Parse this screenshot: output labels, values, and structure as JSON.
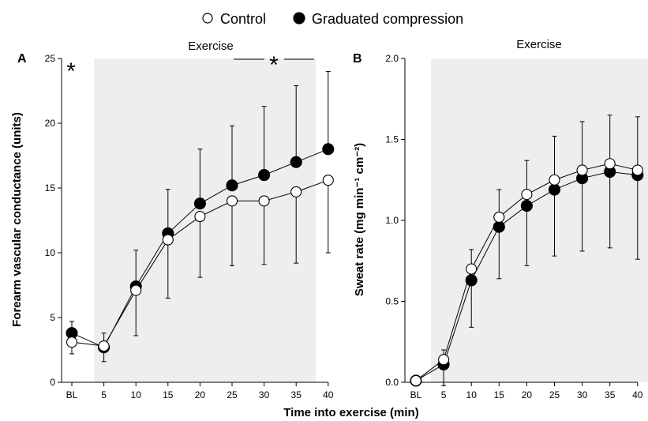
{
  "legend": {
    "items": [
      {
        "label": "Control",
        "marker": "open-circle"
      },
      {
        "label": "Graduated compression",
        "marker": "filled-circle"
      }
    ]
  },
  "shared_xlabel": "Time into exercise (min)",
  "colors": {
    "shade": "#eeeeee",
    "line": "#000000",
    "open_fill": "#ffffff",
    "filled_fill": "#000000"
  },
  "chart_data": [
    {
      "type": "line",
      "panel_label": "A",
      "shaded_region_label": "Exercise",
      "ylabel": "Forearm vascular conductance (units)",
      "categories": [
        "BL",
        "5",
        "10",
        "15",
        "20",
        "25",
        "30",
        "35",
        "40"
      ],
      "ylim": [
        0,
        25
      ],
      "yticks": [
        0,
        5,
        10,
        15,
        20,
        25
      ],
      "ytick_labels": [
        "0",
        "5",
        "10",
        "15",
        "20",
        "25"
      ],
      "series": [
        {
          "name": "Control",
          "marker": "open-circle",
          "values": [
            3.1,
            2.8,
            7.1,
            11.0,
            12.8,
            14.0,
            14.0,
            14.7,
            15.6
          ],
          "error": [
            0.9,
            1.2,
            3.5,
            4.5,
            4.7,
            5.0,
            4.9,
            5.5,
            5.6
          ]
        },
        {
          "name": "Graduated compression",
          "marker": "filled-circle",
          "values": [
            3.8,
            2.7,
            7.4,
            11.5,
            13.8,
            15.2,
            16.0,
            17.0,
            18.0
          ],
          "error": [
            0.9,
            1.1,
            2.8,
            3.4,
            4.2,
            4.6,
            5.3,
            5.9,
            6.0
          ]
        }
      ],
      "annotations": [
        {
          "text": "*",
          "at": "BL"
        },
        {
          "text": "*",
          "span": [
            "30",
            "40"
          ]
        }
      ]
    },
    {
      "type": "line",
      "panel_label": "B",
      "shaded_region_label": "Exercise",
      "ylabel": "Sweat rate (mg min⁻¹ cm⁻²)",
      "categories": [
        "BL",
        "5",
        "10",
        "15",
        "20",
        "25",
        "30",
        "35",
        "40"
      ],
      "ylim": [
        0,
        2
      ],
      "yticks": [
        0,
        0.5,
        1.0,
        1.5,
        2.0
      ],
      "ytick_labels": [
        "0.0",
        "0.5",
        "1.0",
        "1.5",
        "2.0"
      ],
      "series": [
        {
          "name": "Control",
          "marker": "open-circle",
          "values": [
            0.01,
            0.14,
            0.7,
            1.02,
            1.16,
            1.25,
            1.31,
            1.35,
            1.31
          ],
          "error": [
            0.01,
            0.16,
            0.36,
            0.38,
            0.44,
            0.47,
            0.5,
            0.52,
            0.55
          ]
        },
        {
          "name": "Graduated compression",
          "marker": "filled-circle",
          "values": [
            0.01,
            0.11,
            0.63,
            0.96,
            1.09,
            1.19,
            1.26,
            1.3,
            1.28
          ],
          "error": [
            0.01,
            0.09,
            0.19,
            0.23,
            0.28,
            0.33,
            0.35,
            0.35,
            0.36
          ]
        }
      ]
    }
  ]
}
